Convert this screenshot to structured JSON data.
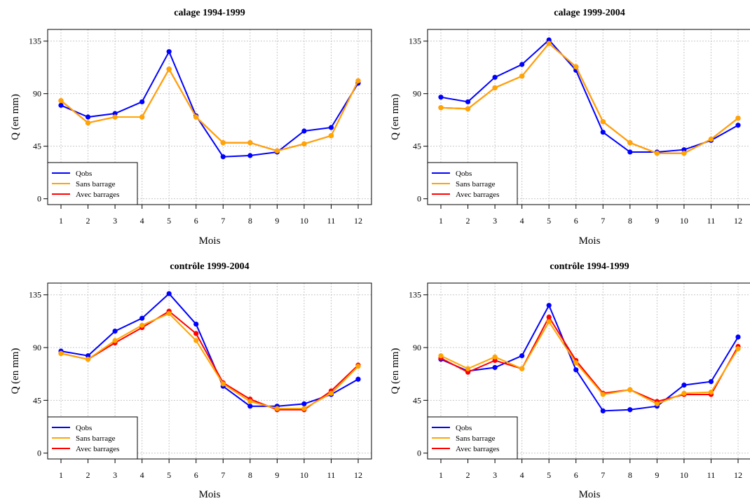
{
  "chart_data": [
    {
      "type": "line",
      "title": "calage   1994-1999",
      "xlabel": "Mois",
      "ylabel": "Q (en mm)",
      "x": [
        1,
        2,
        3,
        4,
        5,
        6,
        7,
        8,
        9,
        10,
        11,
        12
      ],
      "yticks": [
        0,
        45,
        90,
        135
      ],
      "ylim": [
        -5,
        145
      ],
      "grid": true,
      "legend_position": "bottom-left",
      "series": [
        {
          "name": "Qobs",
          "color": "#0000ff",
          "values": [
            80,
            70,
            73,
            83,
            126,
            71,
            36,
            37,
            40,
            58,
            61,
            99
          ]
        },
        {
          "name": "Sans barrage",
          "color": "#ffa500",
          "values": [
            84,
            65,
            70,
            70,
            111,
            70,
            48,
            48,
            41,
            47,
            54,
            101
          ]
        },
        {
          "name": "Avec barrages",
          "color": "#ff0000",
          "values": [
            84,
            65,
            70,
            70,
            111,
            70,
            48,
            48,
            41,
            47,
            54,
            101
          ]
        }
      ]
    },
    {
      "type": "line",
      "title": "calage   1999-2004",
      "xlabel": "Mois",
      "ylabel": "Q (en mm)",
      "x": [
        1,
        2,
        3,
        4,
        5,
        6,
        7,
        8,
        9,
        10,
        11,
        12
      ],
      "yticks": [
        0,
        45,
        90,
        135
      ],
      "ylim": [
        -5,
        145
      ],
      "grid": true,
      "legend_position": "bottom-left",
      "series": [
        {
          "name": "Qobs",
          "color": "#0000ff",
          "values": [
            87,
            83,
            104,
            115,
            136,
            110,
            57,
            40,
            40,
            42,
            50,
            63
          ]
        },
        {
          "name": "Sans barrage",
          "color": "#ffa500",
          "values": [
            78,
            77,
            95,
            105,
            133,
            113,
            66,
            48,
            39,
            39,
            51,
            69
          ]
        },
        {
          "name": "Avec barrages",
          "color": "#ff0000",
          "values": [
            78,
            77,
            95,
            105,
            133,
            113,
            66,
            48,
            39,
            39,
            51,
            69
          ]
        }
      ]
    },
    {
      "type": "line",
      "title": "contrôle   1999-2004",
      "xlabel": "Mois",
      "ylabel": "Q (en mm)",
      "x": [
        1,
        2,
        3,
        4,
        5,
        6,
        7,
        8,
        9,
        10,
        11,
        12
      ],
      "yticks": [
        0,
        45,
        90,
        135
      ],
      "ylim": [
        -5,
        145
      ],
      "grid": true,
      "legend_position": "bottom-left",
      "series": [
        {
          "name": "Qobs",
          "color": "#0000ff",
          "values": [
            87,
            83,
            104,
            115,
            136,
            110,
            57,
            40,
            40,
            42,
            50,
            63
          ]
        },
        {
          "name": "Sans barrage",
          "color": "#ffa500",
          "values": [
            85,
            80,
            96,
            109,
            119,
            96,
            59,
            44,
            38,
            38,
            51,
            74
          ]
        },
        {
          "name": "Avec barrages",
          "color": "#ff0000",
          "values": [
            85,
            80,
            94,
            107,
            121,
            102,
            60,
            46,
            37,
            37,
            53,
            75
          ]
        }
      ]
    },
    {
      "type": "line",
      "title": "contrôle   1994-1999",
      "xlabel": "Mois",
      "ylabel": "Q (en mm)",
      "x": [
        1,
        2,
        3,
        4,
        5,
        6,
        7,
        8,
        9,
        10,
        11,
        12
      ],
      "yticks": [
        0,
        45,
        90,
        135
      ],
      "ylim": [
        -5,
        145
      ],
      "grid": true,
      "legend_position": "bottom-left",
      "series": [
        {
          "name": "Qobs",
          "color": "#0000ff",
          "values": [
            80,
            70,
            73,
            83,
            126,
            71,
            36,
            37,
            40,
            58,
            61,
            99
          ]
        },
        {
          "name": "Sans barrage",
          "color": "#ffa500",
          "values": [
            83,
            72,
            82,
            72,
            112,
            77,
            50,
            54,
            42,
            51,
            52,
            89
          ]
        },
        {
          "name": "Avec barrages",
          "color": "#ff0000",
          "values": [
            81,
            69,
            79,
            72,
            116,
            79,
            51,
            54,
            44,
            50,
            50,
            91
          ]
        }
      ]
    }
  ]
}
